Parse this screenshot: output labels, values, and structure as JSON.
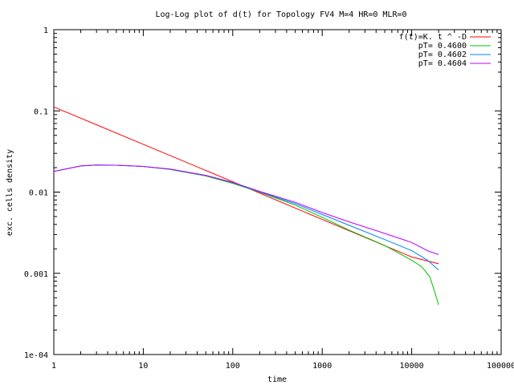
{
  "chart_data": {
    "type": "line",
    "title": "Log-Log plot of d(t) for Topology FV4 M=4 HR=0 MLR=0",
    "xlabel": "time",
    "ylabel": "exc. cells density",
    "x_scale": "log",
    "y_scale": "log",
    "xlim": [
      1,
      100000
    ],
    "ylim": [
      0.0001,
      1
    ],
    "x_ticks": [
      {
        "value": 1,
        "label": "1"
      },
      {
        "value": 10,
        "label": "10"
      },
      {
        "value": 100,
        "label": "100"
      },
      {
        "value": 1000,
        "label": "1000"
      },
      {
        "value": 10000,
        "label": "10000"
      },
      {
        "value": 100000,
        "label": "100000"
      }
    ],
    "y_ticks": [
      {
        "value": 0.0001,
        "label": "1e-04"
      },
      {
        "value": 0.001,
        "label": "0.001"
      },
      {
        "value": 0.01,
        "label": "0.01"
      },
      {
        "value": 0.1,
        "label": "0.1"
      },
      {
        "value": 1,
        "label": "1"
      }
    ],
    "grid": false,
    "legend_position": "top-right",
    "series": [
      {
        "name": "f(t)=K. t ^ -D",
        "color": "#ff0000",
        "x": [
          1,
          10,
          100,
          1000,
          10000,
          20000
        ],
        "y": [
          0.112,
          0.0388,
          0.0134,
          0.00461,
          0.00159,
          0.00131
        ]
      },
      {
        "name": "pT= 0.4600",
        "color": "#00c000",
        "x": [
          1,
          2,
          3,
          5,
          10,
          20,
          50,
          100,
          200,
          500,
          1000,
          2000,
          5000,
          10000,
          13000,
          16000,
          18000,
          20000
        ],
        "y": [
          0.018,
          0.021,
          0.0215,
          0.0214,
          0.0207,
          0.019,
          0.0158,
          0.0128,
          0.01,
          0.0069,
          0.0049,
          0.0034,
          0.0022,
          0.00145,
          0.0012,
          0.0009,
          0.0006,
          0.00041
        ]
      },
      {
        "name": "pT= 0.4602",
        "color": "#0080ff",
        "x": [
          1,
          2,
          3,
          5,
          10,
          20,
          50,
          100,
          200,
          500,
          1000,
          2000,
          5000,
          10000,
          15000,
          20000
        ],
        "y": [
          0.018,
          0.021,
          0.0215,
          0.0214,
          0.0207,
          0.0191,
          0.016,
          0.0131,
          0.0101,
          0.0072,
          0.0053,
          0.0039,
          0.0026,
          0.0019,
          0.00145,
          0.0011
        ]
      },
      {
        "name": "pT= 0.4604",
        "color": "#c000ff",
        "x": [
          1,
          2,
          3,
          5,
          10,
          20,
          50,
          100,
          200,
          500,
          1000,
          2000,
          5000,
          10000,
          15000,
          20000
        ],
        "y": [
          0.018,
          0.021,
          0.0215,
          0.0214,
          0.0207,
          0.0192,
          0.0161,
          0.0132,
          0.0102,
          0.0075,
          0.0056,
          0.0043,
          0.0031,
          0.0024,
          0.0019,
          0.0017
        ]
      }
    ]
  }
}
